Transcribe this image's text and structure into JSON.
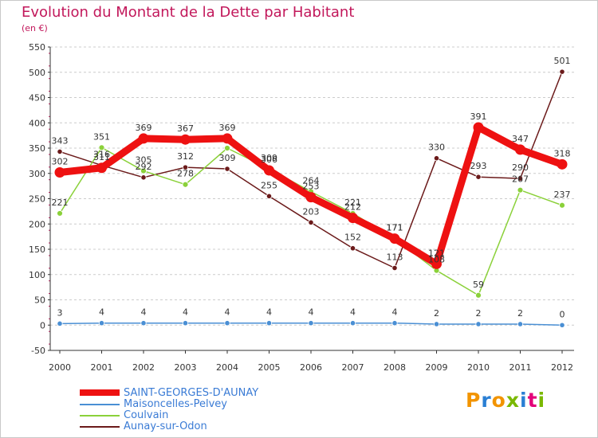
{
  "title": "Evolution du Montant de la Dette par Habitant",
  "subtitle": "(en €)",
  "logo_text": "Proxiti",
  "colors": {
    "title": "#c2185b",
    "legend_text": "#3a7bd5",
    "grid": "#cccccc",
    "axis": "#333333"
  },
  "chart_data": {
    "type": "line",
    "x": [
      "2000",
      "2001",
      "2002",
      "2003",
      "2004",
      "2005",
      "2006",
      "2007",
      "2008",
      "2009",
      "2010",
      "2011",
      "2012"
    ],
    "y_ticks": [
      "-50",
      "0",
      "50",
      "100",
      "150",
      "200",
      "250",
      "300",
      "350",
      "400",
      "450",
      "500",
      "550"
    ],
    "ylim": [
      -50,
      550
    ],
    "grid": "horizontal dashed",
    "legend_position": "bottom-left",
    "series": [
      {
        "name": "Aunay-sur-Odon",
        "color": "#6b1a1a",
        "values": [
          343,
          316,
          292,
          312,
          309,
          255,
          203,
          152,
          113,
          330,
          293,
          290,
          501
        ],
        "labels": [
          "343",
          "316",
          "292",
          "312",
          "309",
          "255",
          "203",
          "152",
          "113",
          "330",
          "293",
          "290",
          "501"
        ]
      },
      {
        "name": "Coulvain",
        "color": "#8bd13a",
        "values": [
          221,
          351,
          305,
          278,
          350,
          309,
          264,
          221,
          171,
          108,
          59,
          267,
          237
        ],
        "labels": [
          "221",
          "351",
          "305",
          "278",
          "",
          "309",
          "264",
          "221",
          "171",
          "108",
          "59",
          "267",
          "237"
        ]
      },
      {
        "name": "Maisoncelles-Pelvey",
        "color": "#4a8fd4",
        "values": [
          3,
          4,
          4,
          4,
          4,
          4,
          4,
          4,
          4,
          2,
          2,
          2,
          0
        ],
        "labels": [
          "3",
          "4",
          "4",
          "4",
          "4",
          "4",
          "4",
          "4",
          "4",
          "2",
          "2",
          "2",
          "0"
        ]
      },
      {
        "name": "SAINT-GEORGES-D'AUNAY",
        "color": "#ee1111",
        "values": [
          302,
          311,
          369,
          367,
          369,
          306,
          253,
          212,
          171,
          121,
          391,
          347,
          318
        ],
        "labels": [
          "302",
          "311",
          "369",
          "367",
          "369",
          "306",
          "253",
          "212",
          "171",
          "121",
          "391",
          "347",
          "318"
        ]
      }
    ],
    "legend": [
      "SAINT-GEORGES-D'AUNAY",
      "Maisoncelles-Pelvey",
      "Coulvain",
      "Aunay-sur-Odon"
    ]
  }
}
